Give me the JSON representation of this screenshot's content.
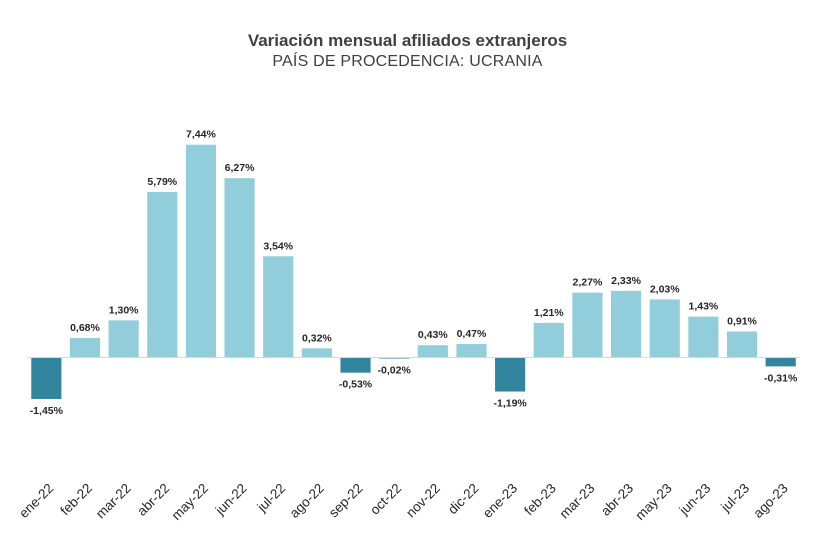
{
  "chart_data": {
    "type": "bar",
    "title": "Variación mensual afiliados extranjeros",
    "subtitle": "PAÍS DE PROCEDENCIA: UCRANIA",
    "categories": [
      "ene-22",
      "feb-22",
      "mar-22",
      "abr-22",
      "may-22",
      "jun-22",
      "jul-22",
      "ago-22",
      "sep-22",
      "oct-22",
      "nov-22",
      "dic-22",
      "ene-23",
      "feb-23",
      "mar-23",
      "abr-23",
      "may-23",
      "jun-23",
      "jul-23",
      "ago-23"
    ],
    "values": [
      -1.45,
      0.68,
      1.3,
      5.79,
      7.44,
      6.27,
      3.54,
      0.32,
      -0.53,
      -0.02,
      0.43,
      0.47,
      -1.19,
      1.21,
      2.27,
      2.33,
      2.03,
      1.43,
      0.91,
      -0.31
    ],
    "labels": [
      "-1,45%",
      "0,68%",
      "1,30%",
      "5,79%",
      "7,44%",
      "6,27%",
      "3,54%",
      "0,32%",
      "-0,53%",
      "-0,02%",
      "0,43%",
      "0,47%",
      "-1,19%",
      "1,21%",
      "2,27%",
      "2,33%",
      "2,03%",
      "1,43%",
      "0,91%",
      "-0,31%"
    ],
    "xlabel": "",
    "ylabel": "",
    "grid": false,
    "legend": "none",
    "colors": {
      "positive": "#92cddc",
      "negative": "#31859c",
      "axis": "#d9d9d9"
    }
  }
}
